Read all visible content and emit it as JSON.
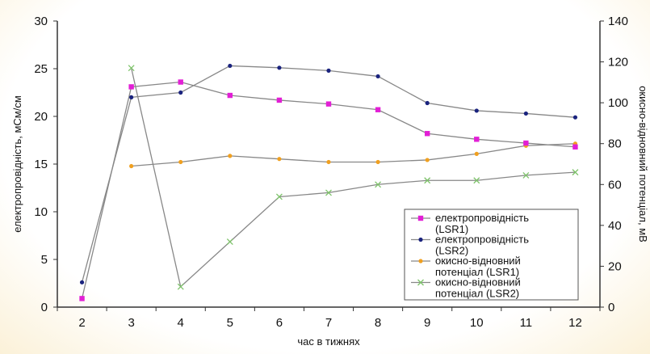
{
  "chart_data": {
    "type": "line",
    "x": [
      2,
      3,
      4,
      5,
      6,
      7,
      8,
      9,
      10,
      11,
      12
    ],
    "xlabel": "час в тижнях",
    "ylabel_left": "електропровідність, мСм/см",
    "ylabel_right": "окисно-відновний потенціал, мВ",
    "ylim_left": [
      0,
      30
    ],
    "ylim_right": [
      0,
      140
    ],
    "yticks_left": [
      0,
      5,
      10,
      15,
      20,
      25,
      30
    ],
    "yticks_right": [
      0,
      20,
      40,
      60,
      80,
      100,
      120,
      140
    ],
    "grid": false,
    "legend_position": "bottom-right",
    "series": [
      {
        "name_line1": "електропровідність",
        "name_line2": "(LSR1)",
        "axis": "left",
        "color": "#e21fd5",
        "marker": "square",
        "values": [
          0.9,
          23.1,
          23.6,
          22.2,
          21.7,
          21.3,
          20.7,
          18.2,
          17.6,
          17.2,
          16.8
        ]
      },
      {
        "name_line1": "електропровідність",
        "name_line2": "(LSR2)",
        "axis": "left",
        "color": "#1a237e",
        "marker": "dot",
        "values": [
          2.6,
          22.0,
          22.5,
          25.3,
          25.1,
          24.8,
          24.2,
          21.4,
          20.6,
          20.3,
          19.9
        ]
      },
      {
        "name_line1": "окисно-відновний",
        "name_line2": "потенціал (LSR1)",
        "axis": "right",
        "color": "#f0a020",
        "marker": "dot",
        "values": [
          null,
          69,
          71,
          74,
          72.5,
          71,
          71,
          72,
          75,
          79,
          80
        ]
      },
      {
        "name_line1": "окисно-відновний",
        "name_line2": "потенціал (LSR2)",
        "axis": "right",
        "color": "#7ec36a",
        "marker": "x",
        "values": [
          null,
          117,
          10,
          32,
          54,
          56,
          60,
          62,
          62,
          64.5,
          66
        ]
      }
    ]
  }
}
